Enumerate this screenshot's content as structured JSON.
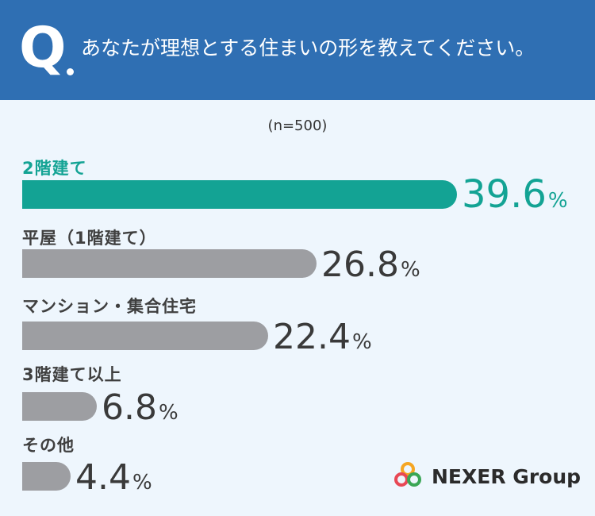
{
  "header": {
    "q_mark": "Q",
    "question": "あなたが理想とする住まいの形を教えてください。"
  },
  "sample_size": "(n=500)",
  "percent_symbol": "%",
  "chart_data": {
    "type": "bar",
    "orientation": "horizontal",
    "title": "あなたが理想とする住まいの形を教えてください。",
    "categories": [
      "2階建て",
      "平屋（1階建て）",
      "マンション・集合住宅",
      "3階建て以上",
      "その他"
    ],
    "values": [
      39.6,
      26.8,
      22.4,
      6.8,
      4.4
    ],
    "value_labels": [
      "39.6",
      "26.8",
      "22.4",
      "6.8",
      "4.4"
    ],
    "unit": "%",
    "highlight_index": 0,
    "colors": {
      "highlight": "#13a394",
      "default": "#9d9ea2"
    },
    "grid": false,
    "legend": "none"
  },
  "logo": {
    "text": "NEXER Group",
    "colors": [
      "#f5a623",
      "#e84855",
      "#3aa655"
    ]
  }
}
